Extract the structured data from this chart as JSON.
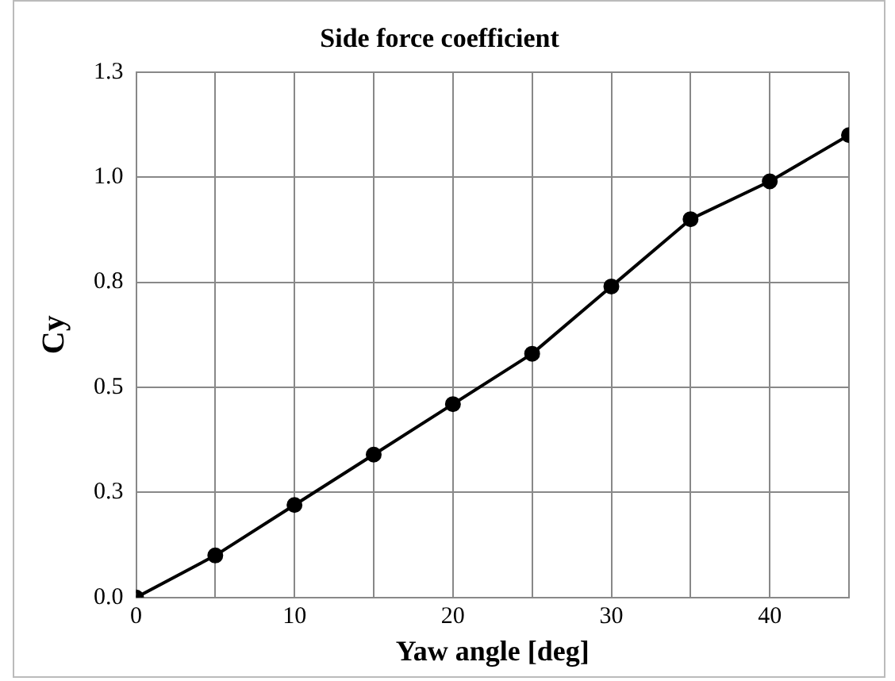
{
  "chart_data": {
    "type": "line",
    "title": "Side force coefficient",
    "xlabel": "Yaw angle [deg]",
    "ylabel": "Cy",
    "x": [
      0,
      5,
      10,
      15,
      20,
      25,
      30,
      35,
      40,
      45
    ],
    "series": [
      {
        "color": "#000000",
        "values": [
          0,
          0.1,
          0.22,
          0.34,
          0.46,
          0.58,
          0.74,
          0.9,
          0.99,
          1.1
        ]
      }
    ],
    "xlim": [
      0,
      45
    ],
    "xticks": [
      0,
      {
        "value": 5,
        "label": null
      },
      10,
      {
        "value": 15,
        "label": null
      },
      20,
      {
        "value": 25,
        "label": null
      },
      30,
      {
        "value": 35,
        "label": null
      },
      40,
      {
        "value": 45,
        "label": null
      }
    ],
    "ylim": [
      0,
      1.25
    ],
    "yticks": [
      {
        "value": 0,
        "label": "0.0"
      },
      {
        "value": 0.25,
        "label": "0.3"
      },
      {
        "value": 0.5,
        "label": "0.5"
      },
      {
        "value": 0.75,
        "label": "0.8"
      },
      {
        "value": 1,
        "label": "1.0"
      },
      {
        "value": 1.25,
        "label": "1.3"
      }
    ],
    "grid": true,
    "legend": false,
    "marker": "circle",
    "line_style": "solid"
  }
}
